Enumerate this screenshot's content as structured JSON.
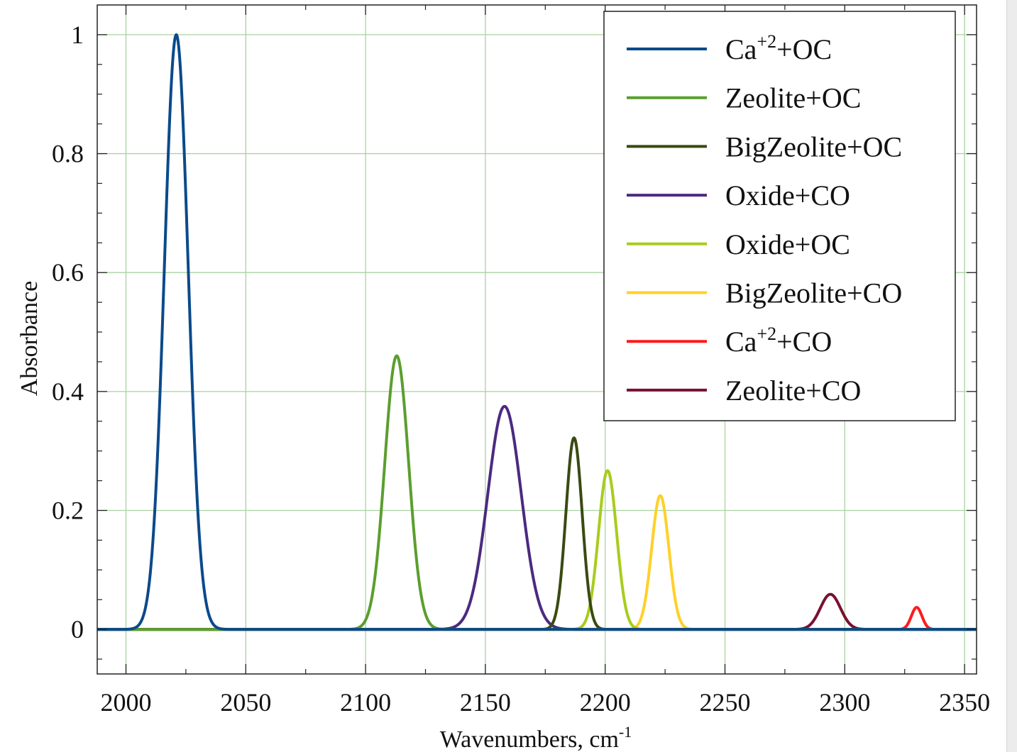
{
  "chart_data": {
    "type": "line",
    "xlabel": "Wavenumbers, cm",
    "xlabel_superscript": "-1",
    "ylabel": "Absorbance",
    "xlim": [
      1988,
      2355
    ],
    "ylim": [
      -0.075,
      1.05
    ],
    "x_ticks": [
      2000,
      2050,
      2100,
      2150,
      2200,
      2250,
      2300,
      2350
    ],
    "y_ticks": [
      0,
      0.2,
      0.4,
      0.6,
      0.8,
      1
    ],
    "y_tick_labels": [
      "0",
      "0.2",
      "0.4",
      "0.6",
      "0.8",
      "1"
    ],
    "grid": true,
    "legend_position": "top-right",
    "series": [
      {
        "name": "Ca+2+OC",
        "base": "Ca",
        "sup": "+2",
        "suffix": "+OC",
        "color": "#0b4a8b",
        "center": 2021,
        "height": 1.0,
        "width": 5.0
      },
      {
        "name": "Zeolite+OC",
        "base": "Zeolite+OC",
        "color": "#5b9e2f",
        "center": 2113,
        "height": 0.46,
        "width": 5.0
      },
      {
        "name": "BigZeolite+OC",
        "base": "BigZeolite+OC",
        "color": "#3a4a12",
        "center": 2187,
        "height": 0.322,
        "width": 3.4
      },
      {
        "name": "Oxide+CO",
        "base": "Oxide+CO",
        "color": "#4b2a80",
        "center": 2158,
        "height": 0.375,
        "width": 7.0
      },
      {
        "name": "Oxide+OC",
        "base": "Oxide+OC",
        "color": "#a8cc1c",
        "center": 2201,
        "height": 0.267,
        "width": 3.8
      },
      {
        "name": "BigZeolite+CO",
        "base": "BigZeolite+CO",
        "color": "#ffd02a",
        "center": 2223,
        "height": 0.225,
        "width": 3.6
      },
      {
        "name": "Ca+2+CO",
        "base": "Ca",
        "sup": "+2",
        "suffix": "+CO",
        "color": "#ff1a1a",
        "center": 2330,
        "height": 0.037,
        "width": 2.2
      },
      {
        "name": "Zeolite+CO",
        "base": "Zeolite+CO",
        "color": "#7a1030",
        "center": 2294,
        "height": 0.059,
        "width": 4.2
      }
    ]
  }
}
